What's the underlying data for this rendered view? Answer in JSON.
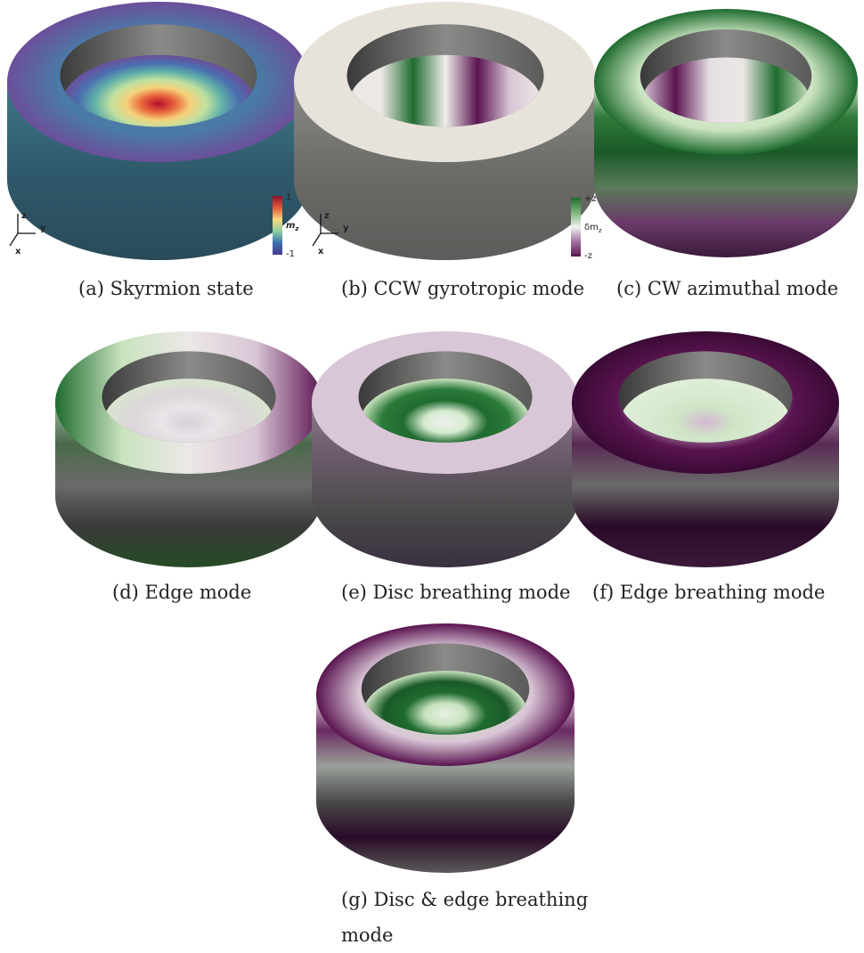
{
  "panels": [
    {
      "caption": "(a) Skyrmion state"
    },
    {
      "caption": "(b) CCW gyrotropic mode"
    },
    {
      "caption": "(c) CW azimuthal mode"
    },
    {
      "caption": "(d) Edge mode"
    },
    {
      "caption": "(e) Disc breathing mode"
    },
    {
      "caption": "(f) Edge breathing mode"
    },
    {
      "caption": "(g) Disc & edge breathing mode"
    }
  ],
  "colorbars": [
    {
      "max": "1",
      "label": "m",
      "label_sub": "z",
      "min": "-1"
    },
    {
      "max": "+z",
      "label": "δm",
      "label_sub": "z",
      "min": "-z"
    }
  ],
  "axes": [
    {
      "z": "z",
      "y": "y",
      "x": "x"
    },
    {
      "z": "z",
      "y": "y",
      "x": "x"
    }
  ]
}
